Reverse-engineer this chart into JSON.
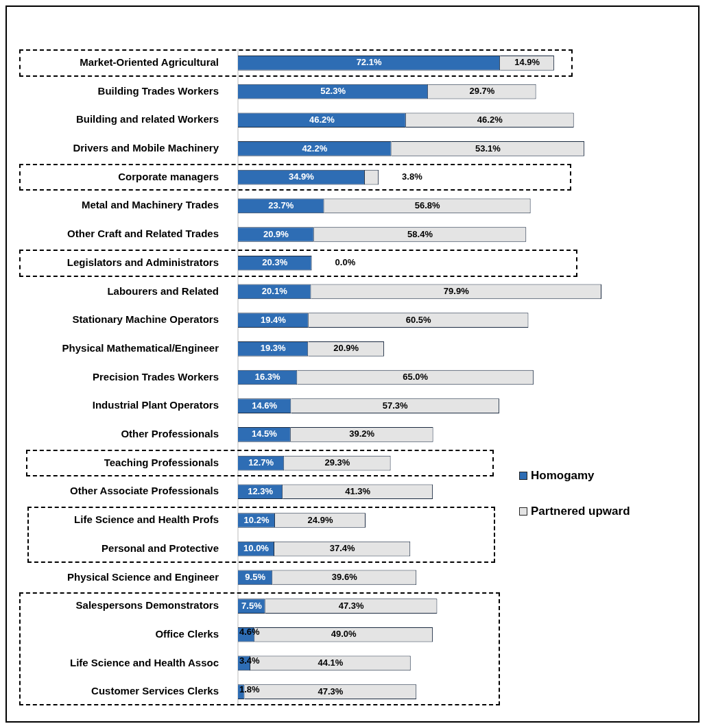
{
  "chart_data": {
    "type": "bar",
    "orientation": "horizontal",
    "stacked": true,
    "grid": false,
    "legend": "right",
    "categories": [
      "Market-Oriented Agricultural",
      "Building Trades Workers",
      "Building and related Workers",
      "Drivers and Mobile Machinery",
      "Corporate managers",
      "Metal and Machinery Trades",
      "Other Craft and Related Trades",
      "Legislators and Administrators",
      "Labourers and Related",
      "Stationary Machine Operators",
      "Physical Mathematical/Engineer",
      "Precision Trades Workers",
      "Industrial Plant Operators",
      "Other Professionals",
      "Teaching Professionals",
      "Other Associate Professionals",
      "Life Science and Health Profs",
      "Personal and Protective",
      "Physical Science and Engineer",
      "Salespersons Demonstrators",
      "Office Clerks",
      "Life Science and Health Assoc",
      "Customer Services Clerks"
    ],
    "series": [
      {
        "name": "Homogamy",
        "color": "#2e6db4",
        "values": [
          72.1,
          52.3,
          46.2,
          42.2,
          34.9,
          23.7,
          20.9,
          20.3,
          20.1,
          19.4,
          19.3,
          16.3,
          14.6,
          14.5,
          12.7,
          12.3,
          10.2,
          10.0,
          9.5,
          7.5,
          4.6,
          3.4,
          1.8
        ],
        "value_labels": [
          "72.1%",
          "52.3%",
          "46.2%",
          "42.2%",
          "34.9%",
          "23.7%",
          "20.9%",
          "20.3%",
          "20.1%",
          "19.4%",
          "19.3%",
          "16.3%",
          "14.6%",
          "14.5%",
          "12.7%",
          "12.3%",
          "10.2%",
          "10.0%",
          "9.5%",
          "7.5%",
          "4.6%",
          "3.4%",
          "1.8%"
        ]
      },
      {
        "name": "Partnered upward",
        "color": "#e4e4e4",
        "values": [
          14.9,
          29.7,
          46.2,
          53.1,
          3.8,
          56.8,
          58.4,
          0.0,
          79.9,
          60.5,
          20.9,
          65.0,
          57.3,
          39.2,
          29.3,
          41.3,
          24.9,
          37.4,
          39.6,
          47.3,
          49.0,
          44.1,
          47.3
        ],
        "value_labels": [
          "14.9%",
          "29.7%",
          "46.2%",
          "53.1%",
          "3.8%",
          "56.8%",
          "58.4%",
          "0.0%",
          "79.9%",
          "60.5%",
          "20.9%",
          "65.0%",
          "57.3%",
          "39.2%",
          "29.3%",
          "41.3%",
          "24.9%",
          "37.4%",
          "39.6%",
          "47.3%",
          "49.0%",
          "44.1%",
          "47.3%"
        ]
      }
    ]
  }
}
